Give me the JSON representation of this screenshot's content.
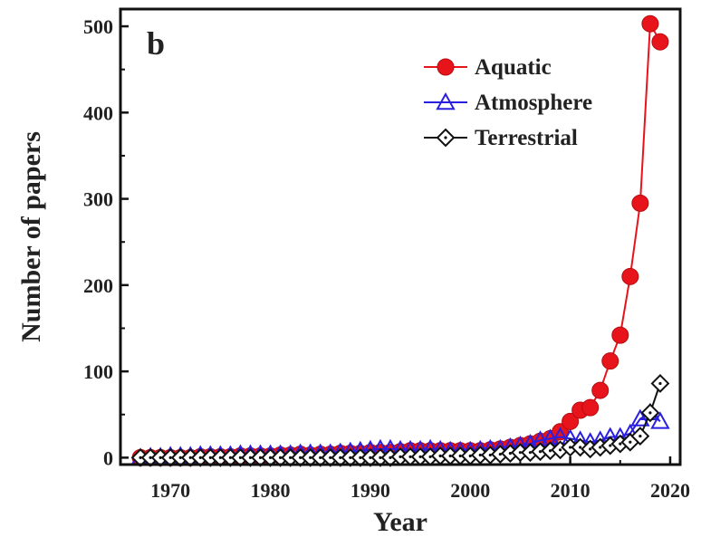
{
  "chart_data": {
    "type": "line",
    "panel_label": "b",
    "xlabel": "Year",
    "ylabel": "Number of papers",
    "xlim": [
      1965,
      2021
    ],
    "ylim": [
      -8,
      520
    ],
    "xticks": [
      1970,
      1980,
      1990,
      2000,
      2010,
      2020
    ],
    "yticks": [
      0,
      100,
      200,
      300,
      400,
      500
    ],
    "legend_position": "top-right",
    "series": [
      {
        "name": "Aquatic",
        "color": "#e8141b",
        "marker": "filled-circle",
        "x": [
          1967,
          1968,
          1969,
          1970,
          1971,
          1972,
          1973,
          1974,
          1975,
          1976,
          1977,
          1978,
          1979,
          1980,
          1981,
          1982,
          1983,
          1984,
          1985,
          1986,
          1987,
          1988,
          1989,
          1990,
          1991,
          1992,
          1993,
          1994,
          1995,
          1996,
          1997,
          1998,
          1999,
          2000,
          2001,
          2002,
          2003,
          2004,
          2005,
          2006,
          2007,
          2008,
          2009,
          2010,
          2011,
          2012,
          2013,
          2014,
          2015,
          2016,
          2017,
          2018,
          2019
        ],
        "y": [
          0,
          0,
          0,
          0,
          0,
          0,
          1,
          1,
          1,
          1,
          2,
          2,
          2,
          2,
          3,
          3,
          4,
          3,
          4,
          4,
          5,
          5,
          5,
          6,
          6,
          6,
          7,
          8,
          8,
          8,
          8,
          8,
          8,
          8,
          8,
          9,
          10,
          12,
          14,
          16,
          19,
          22,
          30,
          42,
          55,
          58,
          78,
          112,
          142,
          210,
          295,
          503,
          482
        ]
      },
      {
        "name": "Atmosphere",
        "color": "#2a1ee0",
        "marker": "open-triangle",
        "x": [
          1967,
          1968,
          1969,
          1970,
          1971,
          1972,
          1973,
          1974,
          1975,
          1976,
          1977,
          1978,
          1979,
          1980,
          1981,
          1982,
          1983,
          1984,
          1985,
          1986,
          1987,
          1988,
          1989,
          1990,
          1991,
          1992,
          1993,
          1994,
          1995,
          1996,
          1997,
          1998,
          1999,
          2000,
          2001,
          2002,
          2003,
          2004,
          2005,
          2006,
          2007,
          2008,
          2009,
          2010,
          2011,
          2012,
          2013,
          2014,
          2015,
          2016,
          2017,
          2018,
          2019
        ],
        "y": [
          0,
          1,
          1,
          2,
          2,
          2,
          3,
          3,
          3,
          3,
          4,
          4,
          4,
          4,
          4,
          4,
          5,
          5,
          5,
          5,
          6,
          7,
          8,
          9,
          10,
          10,
          9,
          9,
          9,
          10,
          9,
          8,
          8,
          8,
          9,
          10,
          10,
          12,
          14,
          16,
          20,
          22,
          24,
          22,
          20,
          18,
          20,
          24,
          24,
          28,
          45,
          52,
          42
        ]
      },
      {
        "name": "Terrestrial",
        "color": "#111111",
        "marker": "open-diamond",
        "x": [
          1967,
          1968,
          1969,
          1970,
          1971,
          1972,
          1973,
          1974,
          1975,
          1976,
          1977,
          1978,
          1979,
          1980,
          1981,
          1982,
          1983,
          1984,
          1985,
          1986,
          1987,
          1988,
          1989,
          1990,
          1991,
          1992,
          1993,
          1994,
          1995,
          1996,
          1997,
          1998,
          1999,
          2000,
          2001,
          2002,
          2003,
          2004,
          2005,
          2006,
          2007,
          2008,
          2009,
          2010,
          2011,
          2012,
          2013,
          2014,
          2015,
          2016,
          2017,
          2018,
          2019
        ],
        "y": [
          0,
          0,
          0,
          0,
          0,
          0,
          0,
          0,
          0,
          0,
          0,
          0,
          0,
          0,
          0,
          0,
          0,
          0,
          0,
          0,
          0,
          0,
          0,
          0,
          0,
          0,
          1,
          1,
          1,
          1,
          2,
          2,
          2,
          2,
          3,
          3,
          4,
          5,
          6,
          6,
          7,
          8,
          9,
          12,
          12,
          10,
          12,
          14,
          16,
          18,
          25,
          52,
          86
        ]
      }
    ]
  }
}
